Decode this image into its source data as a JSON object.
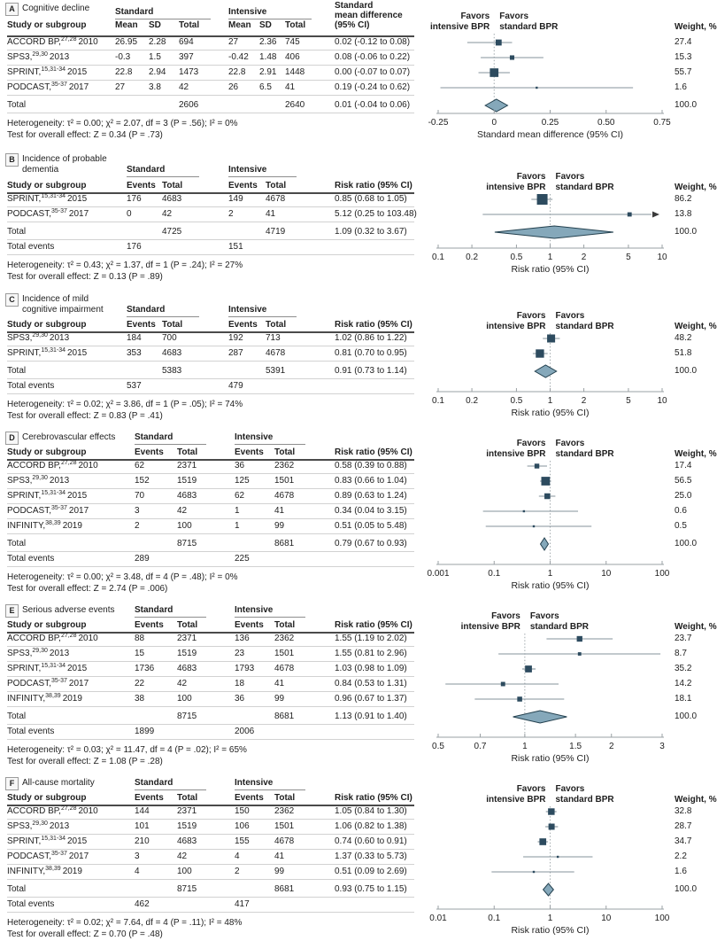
{
  "colors": {
    "square": "#2d4b5f",
    "diamond_fill": "#85a8ba",
    "diamond_stroke": "#24414f",
    "ci_line": "#85939b",
    "axis": "#9aa0a4",
    "null_line": "#a2aaae",
    "text": "#1e1e1e"
  },
  "labels": {
    "study_col": "Study or subgroup",
    "standard": "Standard",
    "intensive": "Intensive",
    "weight_header": "Weight, %",
    "favors_left": [
      "Favors",
      "intensive BPR"
    ],
    "favors_right": [
      "Favors",
      "standard BPR"
    ],
    "mean_cols": [
      "Mean",
      "SD",
      "Total"
    ],
    "event_cols": [
      "Events",
      "Total"
    ]
  },
  "panels": [
    {
      "letter": "A",
      "title_lines": [
        "Cognitive decline"
      ],
      "type": "mean",
      "effect_header_lines": [
        "Standard",
        "mean difference",
        "(95% CI)"
      ],
      "axis": {
        "scale": "linear",
        "ticks": [
          "-0.25",
          "0",
          "0.25",
          "0.50",
          "0.75"
        ],
        "tick_values": [
          -0.25,
          0,
          0.25,
          0.5,
          0.75
        ],
        "null_value": 0,
        "xlabel": "Standard mean difference (95% CI)"
      },
      "rows": [
        {
          "study": "ACCORD BP,",
          "refs": "27,28",
          "year": "2010",
          "std": [
            "26.95",
            "2.28",
            "694"
          ],
          "int": [
            "27",
            "2.36",
            "745"
          ],
          "effect": "0.02 (-0.12 to 0.08)",
          "est": 0.02,
          "lo": -0.12,
          "hi": 0.08,
          "weight": "27.4"
        },
        {
          "study": "SPS3,",
          "refs": "29,30",
          "year": "2013",
          "std": [
            "-0.3",
            "1.5",
            "397"
          ],
          "int": [
            "-0.42",
            "1.48",
            "406"
          ],
          "effect": "0.08 (-0.06 to 0.22)",
          "est": 0.08,
          "lo": -0.06,
          "hi": 0.22,
          "weight": "15.3"
        },
        {
          "study": "SPRINT,",
          "refs": "15,31-34",
          "year": "2015",
          "std": [
            "22.8",
            "2.94",
            "1473"
          ],
          "int": [
            "22.8",
            "2.91",
            "1448"
          ],
          "effect": "0.00 (-0.07 to 0.07)",
          "est": 0.0,
          "lo": -0.07,
          "hi": 0.07,
          "weight": "55.7"
        },
        {
          "study": "PODCAST,",
          "refs": "35-37",
          "year": "2017",
          "std": [
            "27",
            "3.8",
            "42"
          ],
          "int": [
            "26",
            "6.5",
            "41"
          ],
          "effect": "0.19 (-0.24 to 0.62)",
          "est": 0.19,
          "lo": -0.24,
          "hi": 0.62,
          "weight": "1.6"
        }
      ],
      "total": {
        "label": "Total",
        "std_total": "2606",
        "int_total": "2640",
        "effect": "0.01 (-0.04 to 0.06)",
        "est": 0.01,
        "lo": -0.04,
        "hi": 0.06,
        "weight": "100.0"
      },
      "total_events": null,
      "heterogeneity": "Heterogeneity: τ² = 0.00; χ² = 2.07, df = 3 (P = .56); I² = 0%",
      "overall_test": "Test for overall effect: Z = 0.34 (P = .73)"
    },
    {
      "letter": "B",
      "title_lines": [
        "Incidence of probable",
        "dementia"
      ],
      "type": "events",
      "effect_header_lines": [
        "Risk ratio (95% CI)"
      ],
      "axis": {
        "scale": "log",
        "ticks": [
          "0.1",
          "0.2",
          "0.5",
          "1",
          "2",
          "5",
          "10"
        ],
        "tick_values": [
          0.1,
          0.2,
          0.5,
          1,
          2,
          5,
          10
        ],
        "null_value": 1,
        "xlabel": "Risk ratio (95% CI)"
      },
      "rows": [
        {
          "study": "SPRINT,",
          "refs": "15,31-34",
          "year": "2015",
          "std": [
            "176",
            "4683"
          ],
          "int": [
            "149",
            "4678"
          ],
          "effect": "0.85 (0.68 to 1.05)",
          "est": 0.85,
          "lo": 0.68,
          "hi": 1.05,
          "weight": "86.2"
        },
        {
          "study": "PODCAST,",
          "refs": "35-37",
          "year": "2017",
          "std": [
            "0",
            "42"
          ],
          "int": [
            "2",
            "41"
          ],
          "effect": "5.12 (0.25 to 103.48)",
          "est": 5.12,
          "lo": 0.25,
          "hi": 103.48,
          "weight": "13.8",
          "arrow_right": true
        }
      ],
      "total": {
        "label": "Total",
        "std_total": "4725",
        "int_total": "4719",
        "effect": "1.09 (0.32 to 3.67)",
        "est": 1.09,
        "lo": 0.32,
        "hi": 3.67,
        "weight": "100.0"
      },
      "total_events": {
        "label": "Total events",
        "std": "176",
        "int": "151"
      },
      "heterogeneity": "Heterogeneity: τ² = 0.43; χ² = 1.37, df = 1 (P = .24); I² = 27%",
      "overall_test": "Test for overall effect: Z = 0.13 (P = .89)"
    },
    {
      "letter": "C",
      "title_lines": [
        "Incidence of mild",
        "cognitive impairment"
      ],
      "type": "events",
      "effect_header_lines": [
        "Risk ratio (95% CI)"
      ],
      "axis": {
        "scale": "log",
        "ticks": [
          "0.1",
          "0.2",
          "0.5",
          "1",
          "2",
          "5",
          "10"
        ],
        "tick_values": [
          0.1,
          0.2,
          0.5,
          1,
          2,
          5,
          10
        ],
        "null_value": 1,
        "xlabel": "Risk ratio (95% CI)"
      },
      "rows": [
        {
          "study": "SPS3,",
          "refs": "29,30",
          "year": "2013",
          "std": [
            "184",
            "700"
          ],
          "int": [
            "192",
            "713"
          ],
          "effect": "1.02 (0.86 to 1.22)",
          "est": 1.02,
          "lo": 0.86,
          "hi": 1.22,
          "weight": "48.2"
        },
        {
          "study": "SPRINT,",
          "refs": "15,31-34",
          "year": "2015",
          "std": [
            "353",
            "4683"
          ],
          "int": [
            "287",
            "4678"
          ],
          "effect": "0.81 (0.70 to 0.95)",
          "est": 0.81,
          "lo": 0.7,
          "hi": 0.95,
          "weight": "51.8"
        }
      ],
      "total": {
        "label": "Total",
        "std_total": "5383",
        "int_total": "5391",
        "effect": "0.91 (0.73 to 1.14)",
        "est": 0.91,
        "lo": 0.73,
        "hi": 1.14,
        "weight": "100.0"
      },
      "total_events": {
        "label": "Total events",
        "std": "537",
        "int": "479"
      },
      "heterogeneity": "Heterogeneity: τ² = 0.02; χ² = 3.86, df = 1 (P = .05); I² = 74%",
      "overall_test": "Test for overall effect: Z = 0.83 (P = .41)"
    },
    {
      "letter": "D",
      "title_lines": [
        "Cerebrovascular effects"
      ],
      "type": "events",
      "effect_header_lines": [
        "Risk ratio (95% CI)"
      ],
      "axis": {
        "scale": "piecewise",
        "ticks": [
          "0.001",
          "0.1",
          "1",
          "10",
          "100"
        ],
        "tick_values": [
          0.001,
          0.1,
          1,
          10,
          100
        ],
        "null_value": 1,
        "xlabel": "Risk ratio (95% CI)"
      },
      "rows": [
        {
          "study": "ACCORD BP,",
          "refs": "27,28",
          "year": "2010",
          "std": [
            "62",
            "2371"
          ],
          "int": [
            "36",
            "2362"
          ],
          "effect": "0.58 (0.39 to 0.88)",
          "est": 0.58,
          "lo": 0.39,
          "hi": 0.88,
          "weight": "17.4"
        },
        {
          "study": "SPS3,",
          "refs": "29,30",
          "year": "2013",
          "std": [
            "152",
            "1519"
          ],
          "int": [
            "125",
            "1501"
          ],
          "effect": "0.83 (0.66 to 1.04)",
          "est": 0.83,
          "lo": 0.66,
          "hi": 1.04,
          "weight": "56.5"
        },
        {
          "study": "SPRINT,",
          "refs": "15,31-34",
          "year": "2015",
          "std": [
            "70",
            "4683"
          ],
          "int": [
            "62",
            "4678"
          ],
          "effect": "0.89 (0.63 to 1.24)",
          "est": 0.89,
          "lo": 0.63,
          "hi": 1.24,
          "weight": "25.0"
        },
        {
          "study": "PODCAST,",
          "refs": "35-37",
          "year": "2017",
          "std": [
            "3",
            "42"
          ],
          "int": [
            "1",
            "41"
          ],
          "effect": "0.34 (0.04 to 3.15)",
          "est": 0.34,
          "lo": 0.04,
          "hi": 3.15,
          "weight": "0.6"
        },
        {
          "study": "INFINITY,",
          "refs": "38,39",
          "year": "2019",
          "std": [
            "2",
            "100"
          ],
          "int": [
            "1",
            "99"
          ],
          "effect": "0.51 (0.05 to 5.48)",
          "est": 0.51,
          "lo": 0.05,
          "hi": 5.48,
          "weight": "0.5"
        }
      ],
      "total": {
        "label": "Total",
        "std_total": "8715",
        "int_total": "8681",
        "effect": "0.79 (0.67 to 0.93)",
        "est": 0.79,
        "lo": 0.67,
        "hi": 0.93,
        "weight": "100.0"
      },
      "total_events": {
        "label": "Total events",
        "std": "289",
        "int": "225"
      },
      "heterogeneity": "Heterogeneity: τ² = 0.00; χ² = 3.48, df = 4 (P = .48); I² = 0%",
      "overall_test": "Test for overall effect: Z = 2.74 (P = .006)"
    },
    {
      "letter": "E",
      "title_lines": [
        "Serious adverse events"
      ],
      "type": "events",
      "effect_header_lines": [
        "Risk ratio (95% CI)"
      ],
      "axis": {
        "scale": "log",
        "ticks": [
          "0.5",
          "0.7",
          "1",
          "1.5",
          "2",
          "3"
        ],
        "tick_values": [
          0.5,
          0.7,
          1,
          1.5,
          2,
          3
        ],
        "null_value": 1,
        "xlabel": "Risk ratio (95% CI)"
      },
      "rows": [
        {
          "study": "ACCORD BP,",
          "refs": "27,28",
          "year": "2010",
          "std": [
            "88",
            "2371"
          ],
          "int": [
            "136",
            "2362"
          ],
          "effect": "1.55 (1.19 to 2.02)",
          "est": 1.55,
          "lo": 1.19,
          "hi": 2.02,
          "weight": "23.7"
        },
        {
          "study": "SPS3,",
          "refs": "29,30",
          "year": "2013",
          "std": [
            "15",
            "1519"
          ],
          "int": [
            "23",
            "1501"
          ],
          "effect": "1.55 (0.81 to 2.96)",
          "est": 1.55,
          "lo": 0.81,
          "hi": 2.96,
          "weight": "8.7"
        },
        {
          "study": "SPRINT,",
          "refs": "15,31-34",
          "year": "2015",
          "std": [
            "1736",
            "4683"
          ],
          "int": [
            "1793",
            "4678"
          ],
          "effect": "1.03 (0.98 to 1.09)",
          "est": 1.03,
          "lo": 0.98,
          "hi": 1.09,
          "weight": "35.2"
        },
        {
          "study": "PODCAST,",
          "refs": "35-37",
          "year": "2017",
          "std": [
            "22",
            "42"
          ],
          "int": [
            "18",
            "41"
          ],
          "effect": "0.84 (0.53 to 1.31)",
          "est": 0.84,
          "lo": 0.53,
          "hi": 1.31,
          "weight": "14.2"
        },
        {
          "study": "INFINITY,",
          "refs": "38,39",
          "year": "2019",
          "std": [
            "38",
            "100"
          ],
          "int": [
            "36",
            "99"
          ],
          "effect": "0.96 (0.67 to 1.37)",
          "est": 0.96,
          "lo": 0.67,
          "hi": 1.37,
          "weight": "18.1"
        }
      ],
      "total": {
        "label": "Total",
        "std_total": "8715",
        "int_total": "8681",
        "effect": "1.13 (0.91 to 1.40)",
        "est": 1.13,
        "lo": 0.91,
        "hi": 1.4,
        "weight": "100.0"
      },
      "total_events": {
        "label": "Total events",
        "std": "1899",
        "int": "2006"
      },
      "heterogeneity": "Heterogeneity: τ² = 0.03; χ² = 11.47, df = 4 (P = .02); I² = 65%",
      "overall_test": "Test for overall effect: Z = 1.08 (P = .28)"
    },
    {
      "letter": "F",
      "title_lines": [
        "All-cause mortality"
      ],
      "type": "events",
      "effect_header_lines": [
        "Risk ratio (95% CI)"
      ],
      "axis": {
        "scale": "log",
        "ticks": [
          "0.01",
          "0.1",
          "1",
          "10",
          "100"
        ],
        "tick_values": [
          0.01,
          0.1,
          1,
          10,
          100
        ],
        "null_value": 1,
        "xlabel": "Risk ratio (95% CI)"
      },
      "rows": [
        {
          "study": "ACCORD BP,",
          "refs": "27,28",
          "year": "2010",
          "std": [
            "144",
            "2371"
          ],
          "int": [
            "150",
            "2362"
          ],
          "effect": "1.05 (0.84 to 1.30)",
          "est": 1.05,
          "lo": 0.84,
          "hi": 1.3,
          "weight": "32.8"
        },
        {
          "study": "SPS3,",
          "refs": "29,30",
          "year": "2013",
          "std": [
            "101",
            "1519"
          ],
          "int": [
            "106",
            "1501"
          ],
          "effect": "1.06 (0.82 to 1.38)",
          "est": 1.06,
          "lo": 0.82,
          "hi": 1.38,
          "weight": "28.7"
        },
        {
          "study": "SPRINT,",
          "refs": "15,31-34",
          "year": "2015",
          "std": [
            "210",
            "4683"
          ],
          "int": [
            "155",
            "4678"
          ],
          "effect": "0.74 (0.60 to 0.91)",
          "est": 0.74,
          "lo": 0.6,
          "hi": 0.91,
          "weight": "34.7"
        },
        {
          "study": "PODCAST,",
          "refs": "35-37",
          "year": "2017",
          "std": [
            "3",
            "42"
          ],
          "int": [
            "4",
            "41"
          ],
          "effect": "1.37 (0.33 to 5.73)",
          "est": 1.37,
          "lo": 0.33,
          "hi": 5.73,
          "weight": "2.2"
        },
        {
          "study": "INFINITY,",
          "refs": "38,39",
          "year": "2019",
          "std": [
            "4",
            "100"
          ],
          "int": [
            "2",
            "99"
          ],
          "effect": "0.51 (0.09 to 2.69)",
          "est": 0.51,
          "lo": 0.09,
          "hi": 2.69,
          "weight": "1.6"
        }
      ],
      "total": {
        "label": "Total",
        "std_total": "8715",
        "int_total": "8681",
        "effect": "0.93 (0.75 to 1.15)",
        "est": 0.93,
        "lo": 0.75,
        "hi": 1.15,
        "weight": "100.0"
      },
      "total_events": {
        "label": "Total events",
        "std": "462",
        "int": "417"
      },
      "heterogeneity": "Heterogeneity: τ² = 0.02; χ² = 7.64, df = 4 (P = .11); I² = 48%",
      "overall_test": "Test for overall effect: Z = 0.70 (P = .48)"
    }
  ]
}
